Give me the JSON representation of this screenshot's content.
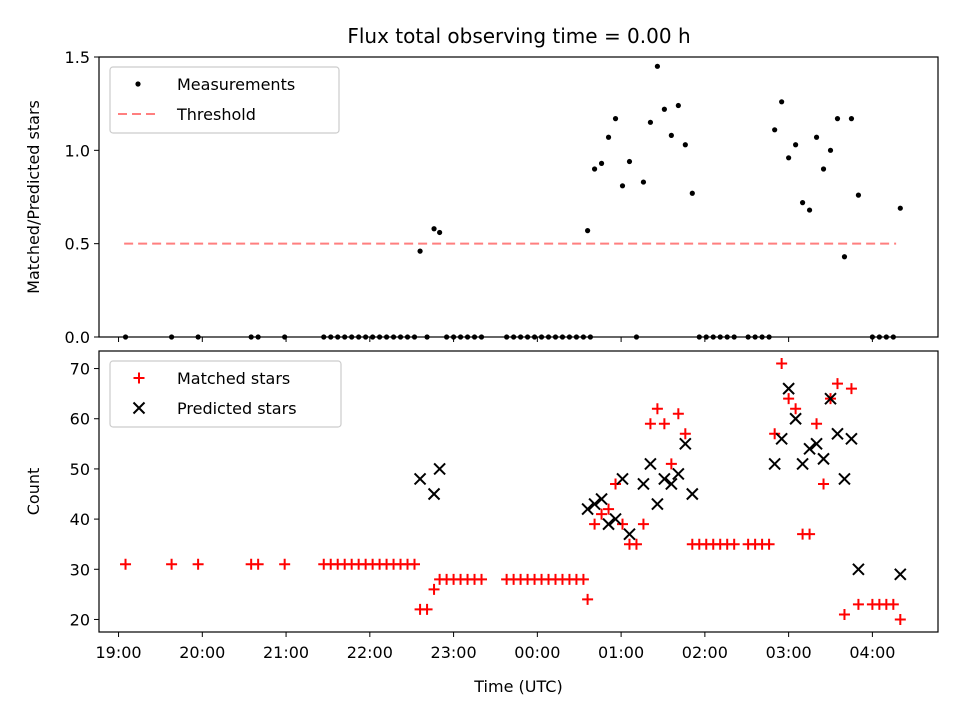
{
  "chart_data": [
    {
      "type": "scatter",
      "title": "Flux total observing time = 0.00 h",
      "xlabel": "",
      "ylabel": "Matched/Predicted stars",
      "xlim": [
        "18:46",
        "04:47"
      ],
      "ylim": [
        0,
        1.5
      ],
      "yticks": [
        "0.0",
        "0.5",
        "1.0",
        "1.5"
      ],
      "grid": false,
      "legend_position": "top-left",
      "legend": [
        "Measurements",
        "Threshold"
      ],
      "colors": {
        "measurements": "#000000",
        "threshold": "#ff7f7f"
      },
      "threshold": {
        "y": 0.5,
        "x_start": "19:04",
        "x_end": "04:17"
      },
      "series": [
        {
          "name": "Measurements",
          "marker": "dot",
          "points": [
            [
              "19:05",
              0.0
            ],
            [
              "19:38",
              0.0
            ],
            [
              "19:57",
              0.0
            ],
            [
              "20:35",
              0.0
            ],
            [
              "20:40",
              0.0
            ],
            [
              "20:59",
              0.0
            ],
            [
              "21:27",
              0.0
            ],
            [
              "21:32",
              0.0
            ],
            [
              "21:37",
              0.0
            ],
            [
              "21:42",
              0.0
            ],
            [
              "21:47",
              0.0
            ],
            [
              "21:52",
              0.0
            ],
            [
              "21:57",
              0.0
            ],
            [
              "22:02",
              0.0
            ],
            [
              "22:07",
              0.0
            ],
            [
              "22:12",
              0.0
            ],
            [
              "22:17",
              0.0
            ],
            [
              "22:22",
              0.0
            ],
            [
              "22:27",
              0.0
            ],
            [
              "22:32",
              0.0
            ],
            [
              "22:36",
              0.46
            ],
            [
              "22:41",
              0.0
            ],
            [
              "22:46",
              0.58
            ],
            [
              "22:50",
              0.56
            ],
            [
              "22:55",
              0.0
            ],
            [
              "23:00",
              0.0
            ],
            [
              "23:05",
              0.0
            ],
            [
              "23:10",
              0.0
            ],
            [
              "23:15",
              0.0
            ],
            [
              "23:20",
              0.0
            ],
            [
              "23:38",
              0.0
            ],
            [
              "23:43",
              0.0
            ],
            [
              "23:48",
              0.0
            ],
            [
              "23:53",
              0.0
            ],
            [
              "23:58",
              0.0
            ],
            [
              "00:03",
              0.0
            ],
            [
              "00:08",
              0.0
            ],
            [
              "00:13",
              0.0
            ],
            [
              "00:18",
              0.0
            ],
            [
              "00:23",
              0.0
            ],
            [
              "00:28",
              0.0
            ],
            [
              "00:33",
              0.0
            ],
            [
              "00:38",
              0.0
            ],
            [
              "00:36",
              0.57
            ],
            [
              "00:41",
              0.9
            ],
            [
              "00:46",
              0.93
            ],
            [
              "00:51",
              1.07
            ],
            [
              "00:56",
              1.17
            ],
            [
              "01:01",
              0.81
            ],
            [
              "01:06",
              0.94
            ],
            [
              "01:11",
              0.0
            ],
            [
              "01:16",
              0.83
            ],
            [
              "01:21",
              1.15
            ],
            [
              "01:26",
              1.45
            ],
            [
              "01:31",
              1.22
            ],
            [
              "01:36",
              1.08
            ],
            [
              "01:41",
              1.24
            ],
            [
              "01:46",
              1.03
            ],
            [
              "01:51",
              0.77
            ],
            [
              "01:56",
              0.0
            ],
            [
              "02:01",
              0.0
            ],
            [
              "02:06",
              0.0
            ],
            [
              "02:11",
              0.0
            ],
            [
              "02:16",
              0.0
            ],
            [
              "02:21",
              0.0
            ],
            [
              "02:31",
              0.0
            ],
            [
              "02:36",
              0.0
            ],
            [
              "02:41",
              0.0
            ],
            [
              "02:46",
              0.0
            ],
            [
              "02:50",
              1.11
            ],
            [
              "02:55",
              1.26
            ],
            [
              "03:00",
              0.96
            ],
            [
              "03:05",
              1.03
            ],
            [
              "03:10",
              0.72
            ],
            [
              "03:15",
              0.68
            ],
            [
              "03:20",
              1.07
            ],
            [
              "03:25",
              0.9
            ],
            [
              "03:30",
              1.0
            ],
            [
              "03:35",
              1.17
            ],
            [
              "03:40",
              0.43
            ],
            [
              "03:45",
              1.17
            ],
            [
              "03:50",
              0.76
            ],
            [
              "04:00",
              0.0
            ],
            [
              "04:05",
              0.0
            ],
            [
              "04:10",
              0.0
            ],
            [
              "04:15",
              0.0
            ],
            [
              "04:20",
              0.69
            ]
          ]
        }
      ]
    },
    {
      "type": "scatter",
      "title": "",
      "xlabel": "Time (UTC)",
      "ylabel": "Count",
      "xlim": [
        "18:46",
        "04:47"
      ],
      "ylim": [
        17.5,
        73.5
      ],
      "xticks": [
        "19:00",
        "20:00",
        "21:00",
        "22:00",
        "23:00",
        "00:00",
        "01:00",
        "02:00",
        "03:00",
        "04:00"
      ],
      "yticks": [
        "20",
        "30",
        "40",
        "50",
        "60",
        "70"
      ],
      "grid": false,
      "legend_position": "top-left",
      "legend": [
        "Matched stars",
        "Predicted stars"
      ],
      "colors": {
        "matched": "#ff0000",
        "predicted": "#000000"
      },
      "series": [
        {
          "name": "Matched stars",
          "marker": "plus",
          "points": [
            [
              "19:05",
              31
            ],
            [
              "19:38",
              31
            ],
            [
              "19:57",
              31
            ],
            [
              "20:35",
              31
            ],
            [
              "20:40",
              31
            ],
            [
              "20:59",
              31
            ],
            [
              "21:27",
              31
            ],
            [
              "21:32",
              31
            ],
            [
              "21:37",
              31
            ],
            [
              "21:42",
              31
            ],
            [
              "21:47",
              31
            ],
            [
              "21:52",
              31
            ],
            [
              "21:57",
              31
            ],
            [
              "22:02",
              31
            ],
            [
              "22:07",
              31
            ],
            [
              "22:12",
              31
            ],
            [
              "22:17",
              31
            ],
            [
              "22:22",
              31
            ],
            [
              "22:27",
              31
            ],
            [
              "22:32",
              31
            ],
            [
              "22:36",
              22
            ],
            [
              "22:41",
              22
            ],
            [
              "22:46",
              26
            ],
            [
              "22:50",
              28
            ],
            [
              "22:55",
              28
            ],
            [
              "23:00",
              28
            ],
            [
              "23:05",
              28
            ],
            [
              "23:10",
              28
            ],
            [
              "23:15",
              28
            ],
            [
              "23:20",
              28
            ],
            [
              "23:38",
              28
            ],
            [
              "23:43",
              28
            ],
            [
              "23:48",
              28
            ],
            [
              "23:53",
              28
            ],
            [
              "23:58",
              28
            ],
            [
              "00:03",
              28
            ],
            [
              "00:08",
              28
            ],
            [
              "00:13",
              28
            ],
            [
              "00:18",
              28
            ],
            [
              "00:23",
              28
            ],
            [
              "00:28",
              28
            ],
            [
              "00:33",
              28
            ],
            [
              "00:36",
              24
            ],
            [
              "00:41",
              39
            ],
            [
              "00:46",
              41
            ],
            [
              "00:51",
              42
            ],
            [
              "00:56",
              47
            ],
            [
              "01:01",
              39
            ],
            [
              "01:06",
              35
            ],
            [
              "01:11",
              35
            ],
            [
              "01:16",
              39
            ],
            [
              "01:21",
              59
            ],
            [
              "01:26",
              62
            ],
            [
              "01:31",
              59
            ],
            [
              "01:36",
              51
            ],
            [
              "01:41",
              61
            ],
            [
              "01:46",
              57
            ],
            [
              "01:51",
              35
            ],
            [
              "01:56",
              35
            ],
            [
              "02:01",
              35
            ],
            [
              "02:06",
              35
            ],
            [
              "02:11",
              35
            ],
            [
              "02:16",
              35
            ],
            [
              "02:21",
              35
            ],
            [
              "02:31",
              35
            ],
            [
              "02:36",
              35
            ],
            [
              "02:41",
              35
            ],
            [
              "02:46",
              35
            ],
            [
              "02:50",
              57
            ],
            [
              "02:55",
              71
            ],
            [
              "03:00",
              64
            ],
            [
              "03:05",
              62
            ],
            [
              "03:10",
              37
            ],
            [
              "03:15",
              37
            ],
            [
              "03:20",
              59
            ],
            [
              "03:25",
              47
            ],
            [
              "03:30",
              64
            ],
            [
              "03:35",
              67
            ],
            [
              "03:40",
              21
            ],
            [
              "03:45",
              66
            ],
            [
              "03:50",
              23
            ],
            [
              "04:00",
              23
            ],
            [
              "04:05",
              23
            ],
            [
              "04:10",
              23
            ],
            [
              "04:15",
              23
            ],
            [
              "04:20",
              20
            ]
          ]
        },
        {
          "name": "Predicted stars",
          "marker": "x",
          "points": [
            [
              "22:36",
              48
            ],
            [
              "22:46",
              45
            ],
            [
              "22:50",
              50
            ],
            [
              "00:36",
              42
            ],
            [
              "00:41",
              43
            ],
            [
              "00:46",
              44
            ],
            [
              "00:51",
              39
            ],
            [
              "00:56",
              40
            ],
            [
              "01:01",
              48
            ],
            [
              "01:06",
              37
            ],
            [
              "01:16",
              47
            ],
            [
              "01:21",
              51
            ],
            [
              "01:26",
              43
            ],
            [
              "01:31",
              48
            ],
            [
              "01:36",
              47
            ],
            [
              "01:41",
              49
            ],
            [
              "01:46",
              55
            ],
            [
              "01:51",
              45
            ],
            [
              "02:50",
              51
            ],
            [
              "02:55",
              56
            ],
            [
              "03:00",
              66
            ],
            [
              "03:05",
              60
            ],
            [
              "03:10",
              51
            ],
            [
              "03:15",
              54
            ],
            [
              "03:20",
              55
            ],
            [
              "03:25",
              52
            ],
            [
              "03:30",
              64
            ],
            [
              "03:35",
              57
            ],
            [
              "03:40",
              48
            ],
            [
              "03:45",
              56
            ],
            [
              "03:50",
              30
            ],
            [
              "04:20",
              29
            ]
          ]
        }
      ]
    }
  ]
}
